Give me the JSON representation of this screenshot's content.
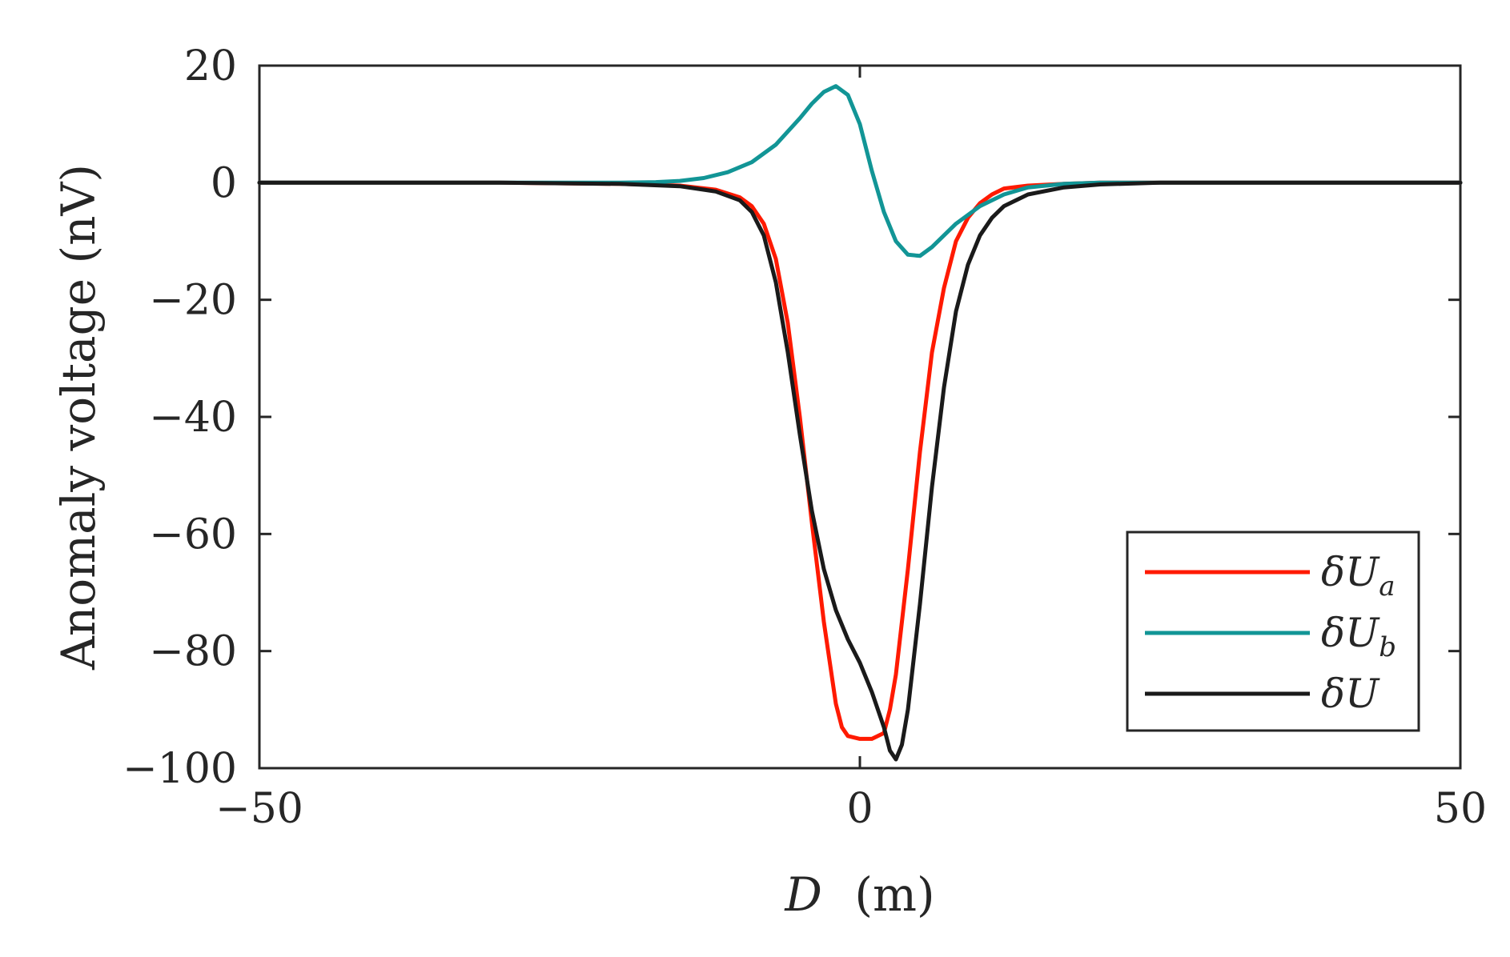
{
  "chart_data": {
    "type": "line",
    "title": "",
    "xlabel": {
      "symbol": "D",
      "unit": "(m)"
    },
    "ylabel": "Anomaly voltage (nV)",
    "xlim": [
      -50,
      50
    ],
    "ylim": [
      -100,
      20
    ],
    "xticks": [
      -50,
      0,
      50
    ],
    "yticks": [
      20,
      0,
      -20,
      -40,
      -60,
      -80,
      -100
    ],
    "xtick_labels": [
      "−50",
      "0",
      "50"
    ],
    "ytick_labels": [
      "20",
      "0",
      "−20",
      "−40",
      "−60",
      "−80",
      "−100"
    ],
    "grid": false,
    "legend_position": "bottom-right",
    "series": [
      {
        "name": "δUa",
        "color": "#ff1a00",
        "points": [
          [
            -50,
            0
          ],
          [
            -30,
            0
          ],
          [
            -20,
            -0.2
          ],
          [
            -15,
            -0.5
          ],
          [
            -12,
            -1.2
          ],
          [
            -10,
            -2.5
          ],
          [
            -9,
            -4
          ],
          [
            -8,
            -7
          ],
          [
            -7,
            -13
          ],
          [
            -6,
            -24
          ],
          [
            -5,
            -40
          ],
          [
            -4,
            -58
          ],
          [
            -3,
            -75
          ],
          [
            -2,
            -89
          ],
          [
            -1.5,
            -93
          ],
          [
            -1,
            -94.5
          ],
          [
            0,
            -95
          ],
          [
            1,
            -95
          ],
          [
            2,
            -94
          ],
          [
            2.5,
            -90
          ],
          [
            3,
            -84
          ],
          [
            4,
            -66
          ],
          [
            5,
            -46
          ],
          [
            6,
            -29
          ],
          [
            7,
            -18
          ],
          [
            8,
            -10
          ],
          [
            9,
            -6
          ],
          [
            10,
            -3.5
          ],
          [
            11,
            -2
          ],
          [
            12,
            -1
          ],
          [
            14,
            -0.5
          ],
          [
            17,
            -0.2
          ],
          [
            20,
            0
          ],
          [
            50,
            0
          ]
        ]
      },
      {
        "name": "δUb",
        "color": "#129596",
        "points": [
          [
            -50,
            0
          ],
          [
            -25,
            0
          ],
          [
            -20,
            0
          ],
          [
            -17,
            0.1
          ],
          [
            -15,
            0.3
          ],
          [
            -13,
            0.8
          ],
          [
            -11,
            1.8
          ],
          [
            -9,
            3.5
          ],
          [
            -7,
            6.5
          ],
          [
            -5,
            11
          ],
          [
            -4,
            13.5
          ],
          [
            -3,
            15.5
          ],
          [
            -2,
            16.5
          ],
          [
            -1,
            15
          ],
          [
            0,
            10
          ],
          [
            1,
            2
          ],
          [
            2,
            -5
          ],
          [
            3,
            -10
          ],
          [
            4,
            -12.3
          ],
          [
            5,
            -12.5
          ],
          [
            6,
            -11
          ],
          [
            7,
            -9
          ],
          [
            8,
            -7
          ],
          [
            9,
            -5.5
          ],
          [
            10,
            -4
          ],
          [
            12,
            -2
          ],
          [
            14,
            -0.8
          ],
          [
            17,
            -0.2
          ],
          [
            20,
            0
          ],
          [
            50,
            0
          ]
        ]
      },
      {
        "name": "δU",
        "color": "#1a1a1a",
        "points": [
          [
            -50,
            0
          ],
          [
            -30,
            0
          ],
          [
            -20,
            -0.2
          ],
          [
            -15,
            -0.6
          ],
          [
            -12,
            -1.5
          ],
          [
            -10,
            -3
          ],
          [
            -9,
            -5
          ],
          [
            -8,
            -9
          ],
          [
            -7,
            -17
          ],
          [
            -6,
            -29
          ],
          [
            -5,
            -43
          ],
          [
            -4,
            -56
          ],
          [
            -3,
            -66
          ],
          [
            -2,
            -73
          ],
          [
            -1,
            -78
          ],
          [
            0,
            -82
          ],
          [
            1,
            -87
          ],
          [
            2,
            -93
          ],
          [
            2.5,
            -97
          ],
          [
            3,
            -98.5
          ],
          [
            3.5,
            -96
          ],
          [
            4,
            -90
          ],
          [
            5,
            -72
          ],
          [
            6,
            -52
          ],
          [
            7,
            -35
          ],
          [
            8,
            -22
          ],
          [
            9,
            -14
          ],
          [
            10,
            -9
          ],
          [
            11,
            -6
          ],
          [
            12,
            -4
          ],
          [
            14,
            -2
          ],
          [
            17,
            -0.8
          ],
          [
            20,
            -0.3
          ],
          [
            25,
            0
          ],
          [
            50,
            0
          ]
        ]
      }
    ],
    "legend": [
      {
        "base": "δU",
        "sub": "a"
      },
      {
        "base": "δU",
        "sub": "b"
      },
      {
        "base": "δU",
        "sub": ""
      }
    ]
  }
}
